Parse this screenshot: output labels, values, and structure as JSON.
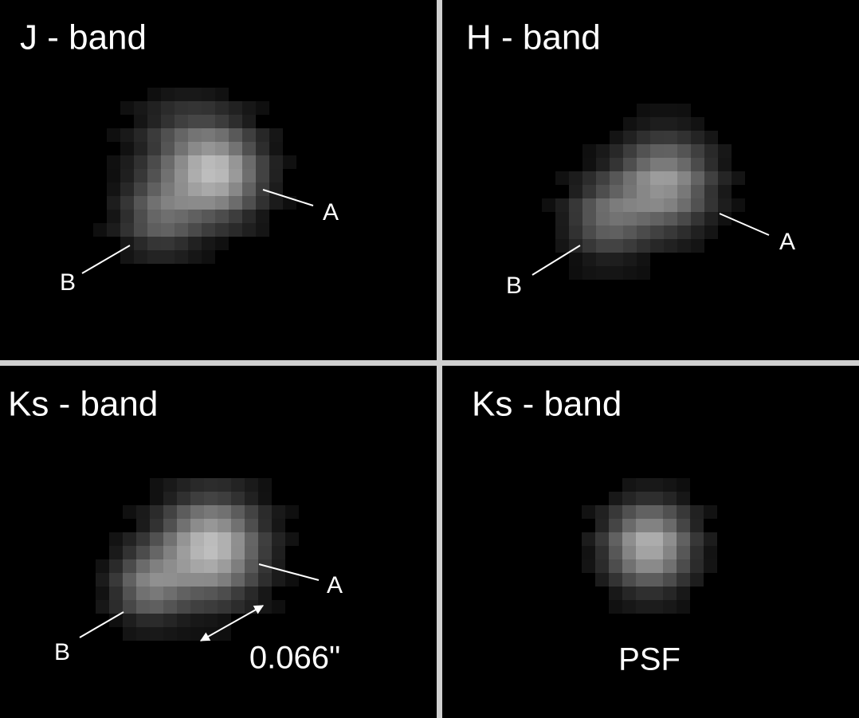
{
  "panels": [
    {
      "title": "J - band",
      "labels": [
        "A",
        "B"
      ]
    },
    {
      "title": "H - band",
      "labels": [
        "A",
        "B"
      ]
    },
    {
      "title": "Ks - band",
      "labels": [
        "A",
        "B"
      ],
      "separation": "0.066\""
    },
    {
      "title": "Ks - band",
      "caption": "PSF"
    }
  ]
}
